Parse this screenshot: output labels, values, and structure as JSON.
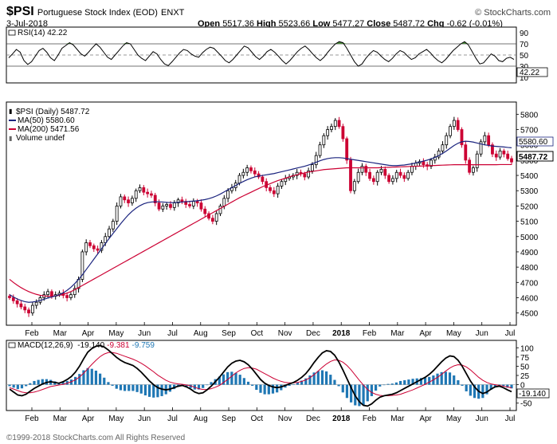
{
  "header": {
    "symbol": "$PSI",
    "name": "Portuguese Stock Index (EOD)",
    "exchange": "ENXT",
    "brand": "© StockCharts.com",
    "date": "3-Jul-2018",
    "open_label": "Open",
    "open": "5517.36",
    "high_label": "High",
    "high": "5523.66",
    "low_label": "Low",
    "low": "5477.27",
    "close_label": "Close",
    "close": "5487.72",
    "chg_label": "Chg",
    "chg": "-0.62 (-0.01%)"
  },
  "footer": {
    "copyright": "©1999-2018 StockCharts.com All Rights Reserved"
  },
  "colors": {
    "up": "#000000",
    "down": "#cc0033",
    "ma50": "#1a237e",
    "ma200": "#cc0033",
    "macd_hist": "#1f77b4",
    "rsi_fill": "#4b8a3c"
  },
  "chart_data": [
    {
      "type": "line",
      "panel": "rsi",
      "legend": "RSI(14) 42.22",
      "last_value_label": "42.22",
      "ylim": [
        0,
        100
      ],
      "yticks": [
        10,
        30,
        50,
        70,
        90
      ],
      "ylabels": [
        "10",
        "30",
        "50",
        "70",
        "90"
      ],
      "reference_lines": [
        30,
        50,
        70
      ],
      "values": [
        45,
        52,
        60,
        55,
        40,
        33,
        38,
        48,
        58,
        62,
        55,
        45,
        40,
        50,
        62,
        67,
        72,
        68,
        60,
        52,
        48,
        55,
        63,
        70,
        64,
        55,
        46,
        42,
        50,
        58,
        66,
        72,
        70,
        60,
        50,
        44,
        40,
        48,
        56,
        52,
        42,
        34,
        31,
        38,
        46,
        54,
        60,
        58,
        52,
        48,
        46,
        54,
        60,
        64,
        62,
        55,
        48,
        40,
        36,
        42,
        50,
        58,
        66,
        63,
        55,
        47,
        42,
        48,
        56,
        60,
        55,
        48,
        40,
        34,
        40,
        48,
        56,
        62,
        66,
        60,
        52,
        45,
        40,
        46,
        55,
        63,
        70,
        74,
        72,
        62,
        50,
        38,
        30,
        34,
        44,
        52,
        58,
        55,
        48,
        42,
        38,
        44,
        52,
        58,
        55,
        48,
        42,
        45,
        52,
        56,
        60,
        54,
        46,
        40,
        36,
        42,
        50,
        58,
        64,
        70,
        74,
        68,
        56,
        44,
        34,
        36,
        44,
        52,
        48,
        40,
        38,
        44,
        46,
        42
      ]
    },
    {
      "type": "bar",
      "panel": "price",
      "title": "Portuguese Stock Index (EOD)",
      "legend": [
        "$PSI (Daily) 5487.72",
        "MA(50) 5580.60",
        "MA(200) 5471.56",
        "Volume undef"
      ],
      "price_tags": {
        "ma50": "5580.60",
        "close": "5487.72"
      },
      "ylim": [
        4420,
        5880
      ],
      "yticks": [
        4500,
        4600,
        4700,
        4800,
        4900,
        5000,
        5100,
        5200,
        5300,
        5400,
        5500,
        5600,
        5700,
        5800
      ],
      "ylabels": [
        "4500",
        "4600",
        "4700",
        "4800",
        "4900",
        "5000",
        "5100",
        "5200",
        "5300",
        "5400",
        "5500",
        "5600",
        "5700",
        "5800"
      ],
      "months": [
        "Feb",
        "Mar",
        "Apr",
        "May",
        "Jun",
        "Jul",
        "Aug",
        "Sep",
        "Oct",
        "Nov",
        "Dec",
        "2018",
        "Feb",
        "Mar",
        "Apr",
        "May",
        "Jun",
        "Jul"
      ],
      "closes": [
        4600,
        4580,
        4560,
        4540,
        4520,
        4500,
        4550,
        4570,
        4600,
        4620,
        4640,
        4610,
        4620,
        4630,
        4615,
        4600,
        4620,
        4660,
        4720,
        4900,
        4960,
        4940,
        4920,
        4910,
        4960,
        5000,
        5050,
        5100,
        5200,
        5260,
        5240,
        5220,
        5250,
        5300,
        5320,
        5290,
        5280,
        5270,
        5220,
        5180,
        5200,
        5210,
        5190,
        5220,
        5240,
        5230,
        5210,
        5200,
        5230,
        5220,
        5180,
        5150,
        5120,
        5100,
        5150,
        5200,
        5250,
        5300,
        5320,
        5350,
        5400,
        5420,
        5450,
        5430,
        5410,
        5390,
        5360,
        5320,
        5300,
        5280,
        5330,
        5360,
        5380,
        5390,
        5400,
        5420,
        5410,
        5390,
        5430,
        5470,
        5530,
        5600,
        5660,
        5700,
        5720,
        5760,
        5720,
        5640,
        5500,
        5300,
        5360,
        5420,
        5460,
        5420,
        5380,
        5360,
        5420,
        5440,
        5400,
        5360,
        5380,
        5420,
        5400,
        5380,
        5420,
        5460,
        5480,
        5490,
        5470,
        5460,
        5500,
        5520,
        5560,
        5600,
        5660,
        5720,
        5760,
        5700,
        5600,
        5500,
        5420,
        5450,
        5540,
        5620,
        5660,
        5600,
        5540,
        5520,
        5560,
        5540,
        5510,
        5488
      ],
      "ma50": [
        4620,
        4605,
        4592,
        4582,
        4574,
        4570,
        4572,
        4576,
        4582,
        4590,
        4598,
        4605,
        4612,
        4620,
        4632,
        4648,
        4668,
        4692,
        4720,
        4750,
        4784,
        4818,
        4852,
        4886,
        4920,
        4954,
        4988,
        5020,
        5052,
        5084,
        5114,
        5142,
        5166,
        5186,
        5202,
        5214,
        5222,
        5226,
        5228,
        5228,
        5226,
        5224,
        5222,
        5222,
        5224,
        5226,
        5228,
        5230,
        5232,
        5234,
        5238,
        5242,
        5248,
        5256,
        5266,
        5278,
        5292,
        5306,
        5320,
        5334,
        5348,
        5360,
        5372,
        5382,
        5390,
        5396,
        5400,
        5404,
        5408,
        5412,
        5418,
        5424,
        5430,
        5436,
        5442,
        5448,
        5454,
        5460,
        5468,
        5476,
        5486,
        5496,
        5504,
        5510,
        5514,
        5516,
        5516,
        5514,
        5510,
        5506,
        5502,
        5498,
        5494,
        5490,
        5486,
        5482,
        5478,
        5474,
        5470,
        5466,
        5464,
        5464,
        5466,
        5468,
        5472,
        5476,
        5482,
        5488,
        5494,
        5500,
        5508,
        5518,
        5530,
        5544,
        5560,
        5578,
        5596,
        5610,
        5620,
        5624,
        5622,
        5618,
        5612,
        5606,
        5600,
        5596,
        5592,
        5590,
        5588,
        5586,
        5583,
        5581
      ],
      "ma200": [
        4720,
        4700,
        4682,
        4666,
        4652,
        4640,
        4630,
        4622,
        4616,
        4612,
        4610,
        4610,
        4612,
        4616,
        4622,
        4630,
        4640,
        4652,
        4666,
        4680,
        4694,
        4708,
        4722,
        4736,
        4750,
        4764,
        4778,
        4792,
        4806,
        4820,
        4834,
        4848,
        4862,
        4876,
        4890,
        4904,
        4918,
        4932,
        4946,
        4960,
        4974,
        4988,
        5002,
        5016,
        5030,
        5044,
        5058,
        5072,
        5086,
        5100,
        5114,
        5128,
        5142,
        5156,
        5170,
        5184,
        5198,
        5212,
        5226,
        5240,
        5254,
        5266,
        5278,
        5290,
        5302,
        5314,
        5326,
        5336,
        5346,
        5356,
        5366,
        5374,
        5382,
        5390,
        5398,
        5404,
        5410,
        5416,
        5422,
        5426,
        5430,
        5434,
        5438,
        5440,
        5442,
        5444,
        5446,
        5448,
        5450,
        5450,
        5450,
        5450,
        5450,
        5450,
        5450,
        5450,
        5450,
        5451,
        5452,
        5453,
        5454,
        5455,
        5456,
        5457,
        5458,
        5459,
        5460,
        5461,
        5462,
        5463,
        5464,
        5465,
        5466,
        5467,
        5468,
        5469,
        5470,
        5470,
        5470,
        5470,
        5470,
        5470,
        5470,
        5470,
        5470,
        5470,
        5470,
        5470,
        5471,
        5471,
        5471,
        5471
      ]
    },
    {
      "type": "line",
      "panel": "macd",
      "legend": [
        "MACD(12,26,9)",
        "-19.140",
        "-9.381",
        "-9.759"
      ],
      "last_value_label": "-19.140",
      "ylim": [
        -70,
        120
      ],
      "yticks": [
        -50,
        0,
        25,
        50,
        75,
        100
      ],
      "ylabels": [
        "-50",
        "0",
        "25",
        "50",
        "75",
        "100"
      ],
      "months": [
        "Feb",
        "Mar",
        "Apr",
        "May",
        "Jun",
        "Jul",
        "Aug",
        "Sep",
        "Oct",
        "Nov",
        "Dec",
        "2018",
        "Feb",
        "Mar",
        "Apr",
        "May",
        "Jun",
        "Jul"
      ],
      "macd": [
        -12,
        -20,
        -28,
        -30,
        -26,
        -18,
        -10,
        -4,
        2,
        6,
        8,
        6,
        4,
        8,
        14,
        22,
        34,
        50,
        70,
        88,
        98,
        104,
        106,
        102,
        94,
        84,
        74,
        66,
        60,
        56,
        52,
        44,
        34,
        22,
        10,
        0,
        -8,
        -12,
        -14,
        -12,
        -8,
        -4,
        -2,
        -6,
        -12,
        -20,
        -24,
        -22,
        -14,
        -4,
        8,
        20,
        34,
        48,
        58,
        64,
        66,
        62,
        54,
        42,
        28,
        14,
        4,
        -2,
        -6,
        -8,
        -6,
        -2,
        2,
        6,
        12,
        20,
        30,
        44,
        60,
        74,
        86,
        92,
        90,
        80,
        62,
        40,
        16,
        -8,
        -30,
        -46,
        -56,
        -58,
        -52,
        -42,
        -34,
        -30,
        -28,
        -26,
        -22,
        -16,
        -10,
        -4,
        2,
        8,
        14,
        20,
        28,
        38,
        50,
        62,
        72,
        78,
        76,
        66,
        50,
        30,
        10,
        -6,
        -18,
        -24,
        -20,
        -12,
        -6,
        -4,
        -8,
        -14,
        -19
      ],
      "signal": [
        -8,
        -12,
        -16,
        -20,
        -22,
        -22,
        -20,
        -17,
        -13,
        -9,
        -5,
        -3,
        -1,
        1,
        4,
        8,
        13,
        21,
        31,
        43,
        55,
        66,
        76,
        83,
        87,
        87,
        85,
        81,
        77,
        73,
        69,
        64,
        58,
        51,
        43,
        35,
        26,
        19,
        12,
        7,
        4,
        2,
        1,
        -1,
        -3,
        -7,
        -11,
        -13,
        -13,
        -11,
        -7,
        -2,
        6,
        14,
        23,
        32,
        39,
        44,
        46,
        45,
        42,
        36,
        30,
        24,
        18,
        13,
        9,
        6,
        5,
        5,
        6,
        9,
        13,
        19,
        27,
        37,
        47,
        56,
        63,
        67,
        66,
        61,
        52,
        40,
        26,
        12,
        -1,
        -13,
        -21,
        -26,
        -29,
        -30,
        -30,
        -29,
        -28,
        -26,
        -22,
        -18,
        -14,
        -9,
        -4,
        1,
        7,
        13,
        20,
        28,
        37,
        45,
        51,
        54,
        53,
        48,
        40,
        30,
        20,
        12,
        6,
        2,
        0,
        -2,
        -4,
        -6,
        -9
      ]
    }
  ]
}
